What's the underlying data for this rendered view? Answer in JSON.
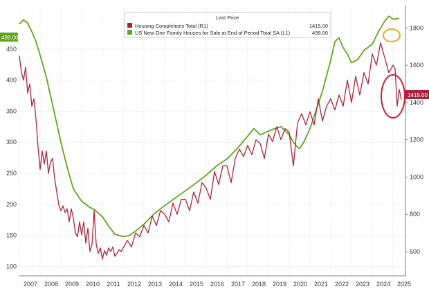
{
  "chart_data": {
    "type": "line",
    "legend": {
      "header": "Last Price",
      "placement": "top-center",
      "entries": [
        {
          "label": "Housing Completions Total  (R1)",
          "value": "1415.00",
          "color": "#a8243c",
          "axis": "right"
        },
        {
          "label": "US New One Family Houses for Sale at End of Period Total SA  (L1)",
          "value": "499.00",
          "color": "#5fa31f",
          "axis": "left"
        }
      ]
    },
    "x_ticks": [
      "2007",
      "2008",
      "2009",
      "2010",
      "2011",
      "2012",
      "2013",
      "2014",
      "2015",
      "2016",
      "2017",
      "2018",
      "2019",
      "2020",
      "2021",
      "2022",
      "2023",
      "2024",
      "2025"
    ],
    "xlim": [
      2007.0,
      2025.6
    ],
    "left_axis": {
      "ticks": [
        "100",
        "150",
        "200",
        "250",
        "300",
        "350",
        "400",
        "450"
      ],
      "ylim": [
        85,
        520
      ]
    },
    "right_axis": {
      "ticks": [
        "600",
        "800",
        "1000",
        "1200",
        "1400",
        "1600",
        "1800"
      ],
      "ylim": [
        470,
        1920
      ]
    },
    "grid": true,
    "badges": {
      "left": "499.00",
      "right": "1415.00"
    },
    "series": [
      {
        "name": "US New One Family Houses for Sale at End of Period Total SA  (L1)",
        "axis": "left",
        "color": "#5fa31f",
        "x": [
          2007.0,
          2007.2,
          2007.4,
          2007.6,
          2007.8,
          2008.0,
          2008.3,
          2008.6,
          2009.0,
          2009.3,
          2009.6,
          2010.0,
          2010.2,
          2010.4,
          2010.6,
          2011.0,
          2011.3,
          2011.6,
          2012.0,
          2012.3,
          2012.6,
          2013.0,
          2013.5,
          2014.0,
          2014.5,
          2015.0,
          2015.5,
          2016.0,
          2016.5,
          2017.0,
          2017.5,
          2018.0,
          2018.3,
          2018.6,
          2019.0,
          2019.3,
          2019.6,
          2020.0,
          2020.2,
          2020.4,
          2020.5,
          2020.7,
          2021.0,
          2021.3,
          2021.6,
          2022.0,
          2022.2,
          2022.4,
          2022.6,
          2022.8,
          2023.0,
          2023.3,
          2023.6,
          2024.0,
          2024.3,
          2024.6,
          2024.8,
          2025.0,
          2025.2,
          2025.3
        ],
        "values": [
          490,
          497,
          492,
          478,
          462,
          440,
          405,
          360,
          300,
          260,
          225,
          205,
          200,
          195,
          192,
          180,
          165,
          152,
          148,
          150,
          157,
          168,
          185,
          198,
          210,
          222,
          234,
          247,
          262,
          273,
          290,
          310,
          322,
          312,
          318,
          322,
          325,
          312,
          300,
          292,
          290,
          300,
          322,
          352,
          382,
          432,
          462,
          468,
          452,
          442,
          428,
          433,
          448,
          458,
          478,
          495,
          503,
          498,
          499,
          499
        ]
      },
      {
        "name": "Housing Completions Total  (R1)",
        "axis": "right",
        "color": "#a8243c",
        "x": [
          2007.0,
          2007.1,
          2007.2,
          2007.3,
          2007.4,
          2007.5,
          2007.6,
          2007.7,
          2007.8,
          2007.9,
          2008.0,
          2008.1,
          2008.2,
          2008.3,
          2008.4,
          2008.5,
          2008.6,
          2008.7,
          2008.8,
          2008.9,
          2009.0,
          2009.1,
          2009.2,
          2009.3,
          2009.4,
          2009.5,
          2009.6,
          2009.7,
          2009.8,
          2009.9,
          2010.0,
          2010.1,
          2010.2,
          2010.3,
          2010.4,
          2010.5,
          2010.6,
          2010.7,
          2010.8,
          2010.9,
          2011.0,
          2011.1,
          2011.2,
          2011.3,
          2011.4,
          2011.5,
          2011.6,
          2011.7,
          2011.8,
          2011.9,
          2012.0,
          2012.2,
          2012.4,
          2012.6,
          2012.8,
          2013.0,
          2013.2,
          2013.4,
          2013.6,
          2013.8,
          2014.0,
          2014.2,
          2014.4,
          2014.6,
          2014.8,
          2015.0,
          2015.2,
          2015.4,
          2015.6,
          2015.8,
          2016.0,
          2016.2,
          2016.4,
          2016.6,
          2016.8,
          2017.0,
          2017.2,
          2017.4,
          2017.6,
          2017.8,
          2018.0,
          2018.2,
          2018.4,
          2018.6,
          2018.8,
          2019.0,
          2019.2,
          2019.4,
          2019.6,
          2019.8,
          2020.0,
          2020.2,
          2020.4,
          2020.6,
          2020.8,
          2021.0,
          2021.2,
          2021.4,
          2021.6,
          2021.8,
          2022.0,
          2022.2,
          2022.4,
          2022.6,
          2022.8,
          2023.0,
          2023.2,
          2023.4,
          2023.6,
          2023.8,
          2024.0,
          2024.2,
          2024.4,
          2024.6,
          2024.8,
          2025.0,
          2025.1,
          2025.2,
          2025.3,
          2025.4
        ],
        "values": [
          1650,
          1560,
          1520,
          1590,
          1450,
          1500,
          1380,
          1420,
          1310,
          1160,
          1040,
          1140,
          1070,
          1140,
          1020,
          1080,
          1100,
          990,
          920,
          850,
          820,
          845,
          810,
          830,
          760,
          830,
          780,
          700,
          680,
          760,
          690,
          760,
          645,
          725,
          600,
          640,
          820,
          640,
          590,
          620,
          560,
          605,
          580,
          620,
          600,
          625,
          575,
          590,
          610,
          600,
          620,
          660,
          625,
          700,
          680,
          740,
          700,
          790,
          740,
          820,
          800,
          760,
          860,
          800,
          880,
          880,
          820,
          920,
          860,
          970,
          940,
          880,
          1030,
          960,
          1060,
          1060,
          970,
          1100,
          1150,
          1110,
          1170,
          1120,
          1200,
          1180,
          1100,
          1230,
          1190,
          1270,
          1200,
          1260,
          1240,
          1060,
          1290,
          1340,
          1280,
          1350,
          1280,
          1420,
          1300,
          1380,
          1420,
          1360,
          1440,
          1380,
          1520,
          1400,
          1540,
          1440,
          1560,
          1500,
          1660,
          1600,
          1720,
          1640,
          1560,
          1600,
          1580,
          1380,
          1470,
          1415
        ]
      }
    ]
  }
}
